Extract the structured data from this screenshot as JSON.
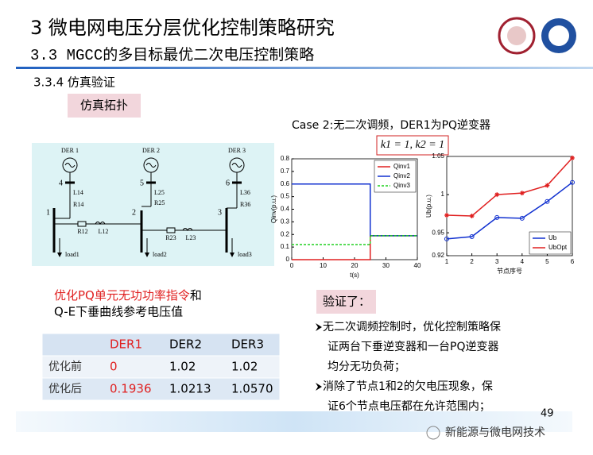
{
  "header": {
    "title": "3 微电网电压分层优化控制策略研究",
    "subtitle": "3.3 MGCC的多目标最优二次电压控制策略"
  },
  "section": "3.3.4 仿真验证",
  "topology_tag": "仿真拓扑",
  "topology": {
    "der": [
      "DER 1",
      "DER 2",
      "DER 3"
    ],
    "nodes": [
      "4",
      "5",
      "6",
      "1",
      "2",
      "3"
    ],
    "elements": [
      "L14",
      "R14",
      "L25",
      "R25",
      "L36",
      "R36",
      "R12",
      "L12",
      "R23",
      "L23"
    ],
    "loads": [
      "load1",
      "load2",
      "load3"
    ]
  },
  "case": "Case 2:无二次调频，DER1为PQ逆变器",
  "formula": "k1 = 1,  k2 = 1",
  "left_chart": {
    "type": "line",
    "x": [
      0,
      25,
      25,
      40
    ],
    "xlim": [
      0,
      40
    ],
    "xticks": [
      0,
      10,
      20,
      30,
      40
    ],
    "ylim": [
      0,
      0.8
    ],
    "yticks": [
      0,
      0.1,
      0.2,
      0.3,
      0.4,
      0.5,
      0.6,
      0.7,
      0.8
    ],
    "x_label": "t(s)",
    "y_label": "Qinv(p.u.)",
    "legend": "northeast",
    "series": [
      {
        "name": "Qinv1",
        "color": "#e02020",
        "style": "solid",
        "values": [
          0,
          0,
          0.19,
          0.19
        ]
      },
      {
        "name": "Qinv2",
        "color": "#1030d0",
        "style": "solid",
        "values": [
          0.6,
          0.6,
          0.19,
          0.19
        ]
      },
      {
        "name": "Qinv3",
        "color": "#20d020",
        "style": "dashed",
        "values": [
          0.12,
          0.12,
          0.19,
          0.19
        ]
      }
    ]
  },
  "right_chart": {
    "type": "line",
    "x": [
      1,
      2,
      3,
      4,
      5,
      6
    ],
    "xlim": [
      1,
      6
    ],
    "xticks": [
      1,
      2,
      3,
      4,
      5,
      6
    ],
    "ylim": [
      0.92,
      1.05
    ],
    "yticks": [
      0.92,
      0.95,
      1,
      1.05
    ],
    "x_label": "节点序号",
    "y_label": "Ub(p.u.)",
    "legend": "southeast",
    "series": [
      {
        "name": "Ub",
        "color": "#1030d0",
        "marker": "circle",
        "values": [
          0.942,
          0.945,
          0.97,
          0.969,
          0.991,
          1.016
        ]
      },
      {
        "name": "UbOpt",
        "color": "#e02020",
        "marker": "star",
        "values": [
          0.973,
          0.972,
          1.0,
          1.002,
          1.012,
          1.048
        ]
      }
    ]
  },
  "note": {
    "highlight": "优化PQ单元无功功率指令",
    "rest": "和",
    "line2": "Q-E下垂曲线参考电压值"
  },
  "table": {
    "columns": [
      "DER1",
      "DER2",
      "DER3"
    ],
    "rows": [
      {
        "label": "优化前",
        "cells": [
          "0",
          "1.02",
          "1.02"
        ]
      },
      {
        "label": "优化后",
        "cells": [
          "0.1936",
          "1.0213",
          "1.0570"
        ]
      }
    ]
  },
  "verify_tag": "验证了：",
  "bullets": [
    [
      "无二次调频控制时，优化控制策略保",
      "证两台下垂逆变器和一台PQ逆变器",
      "均分无功负荷；"
    ],
    [
      "消除了节点1和2的欠电压现象，保",
      "证6个节点电压都在允许范围内；"
    ]
  ],
  "page_number": "49",
  "watermark": "新能源与微电网技术"
}
